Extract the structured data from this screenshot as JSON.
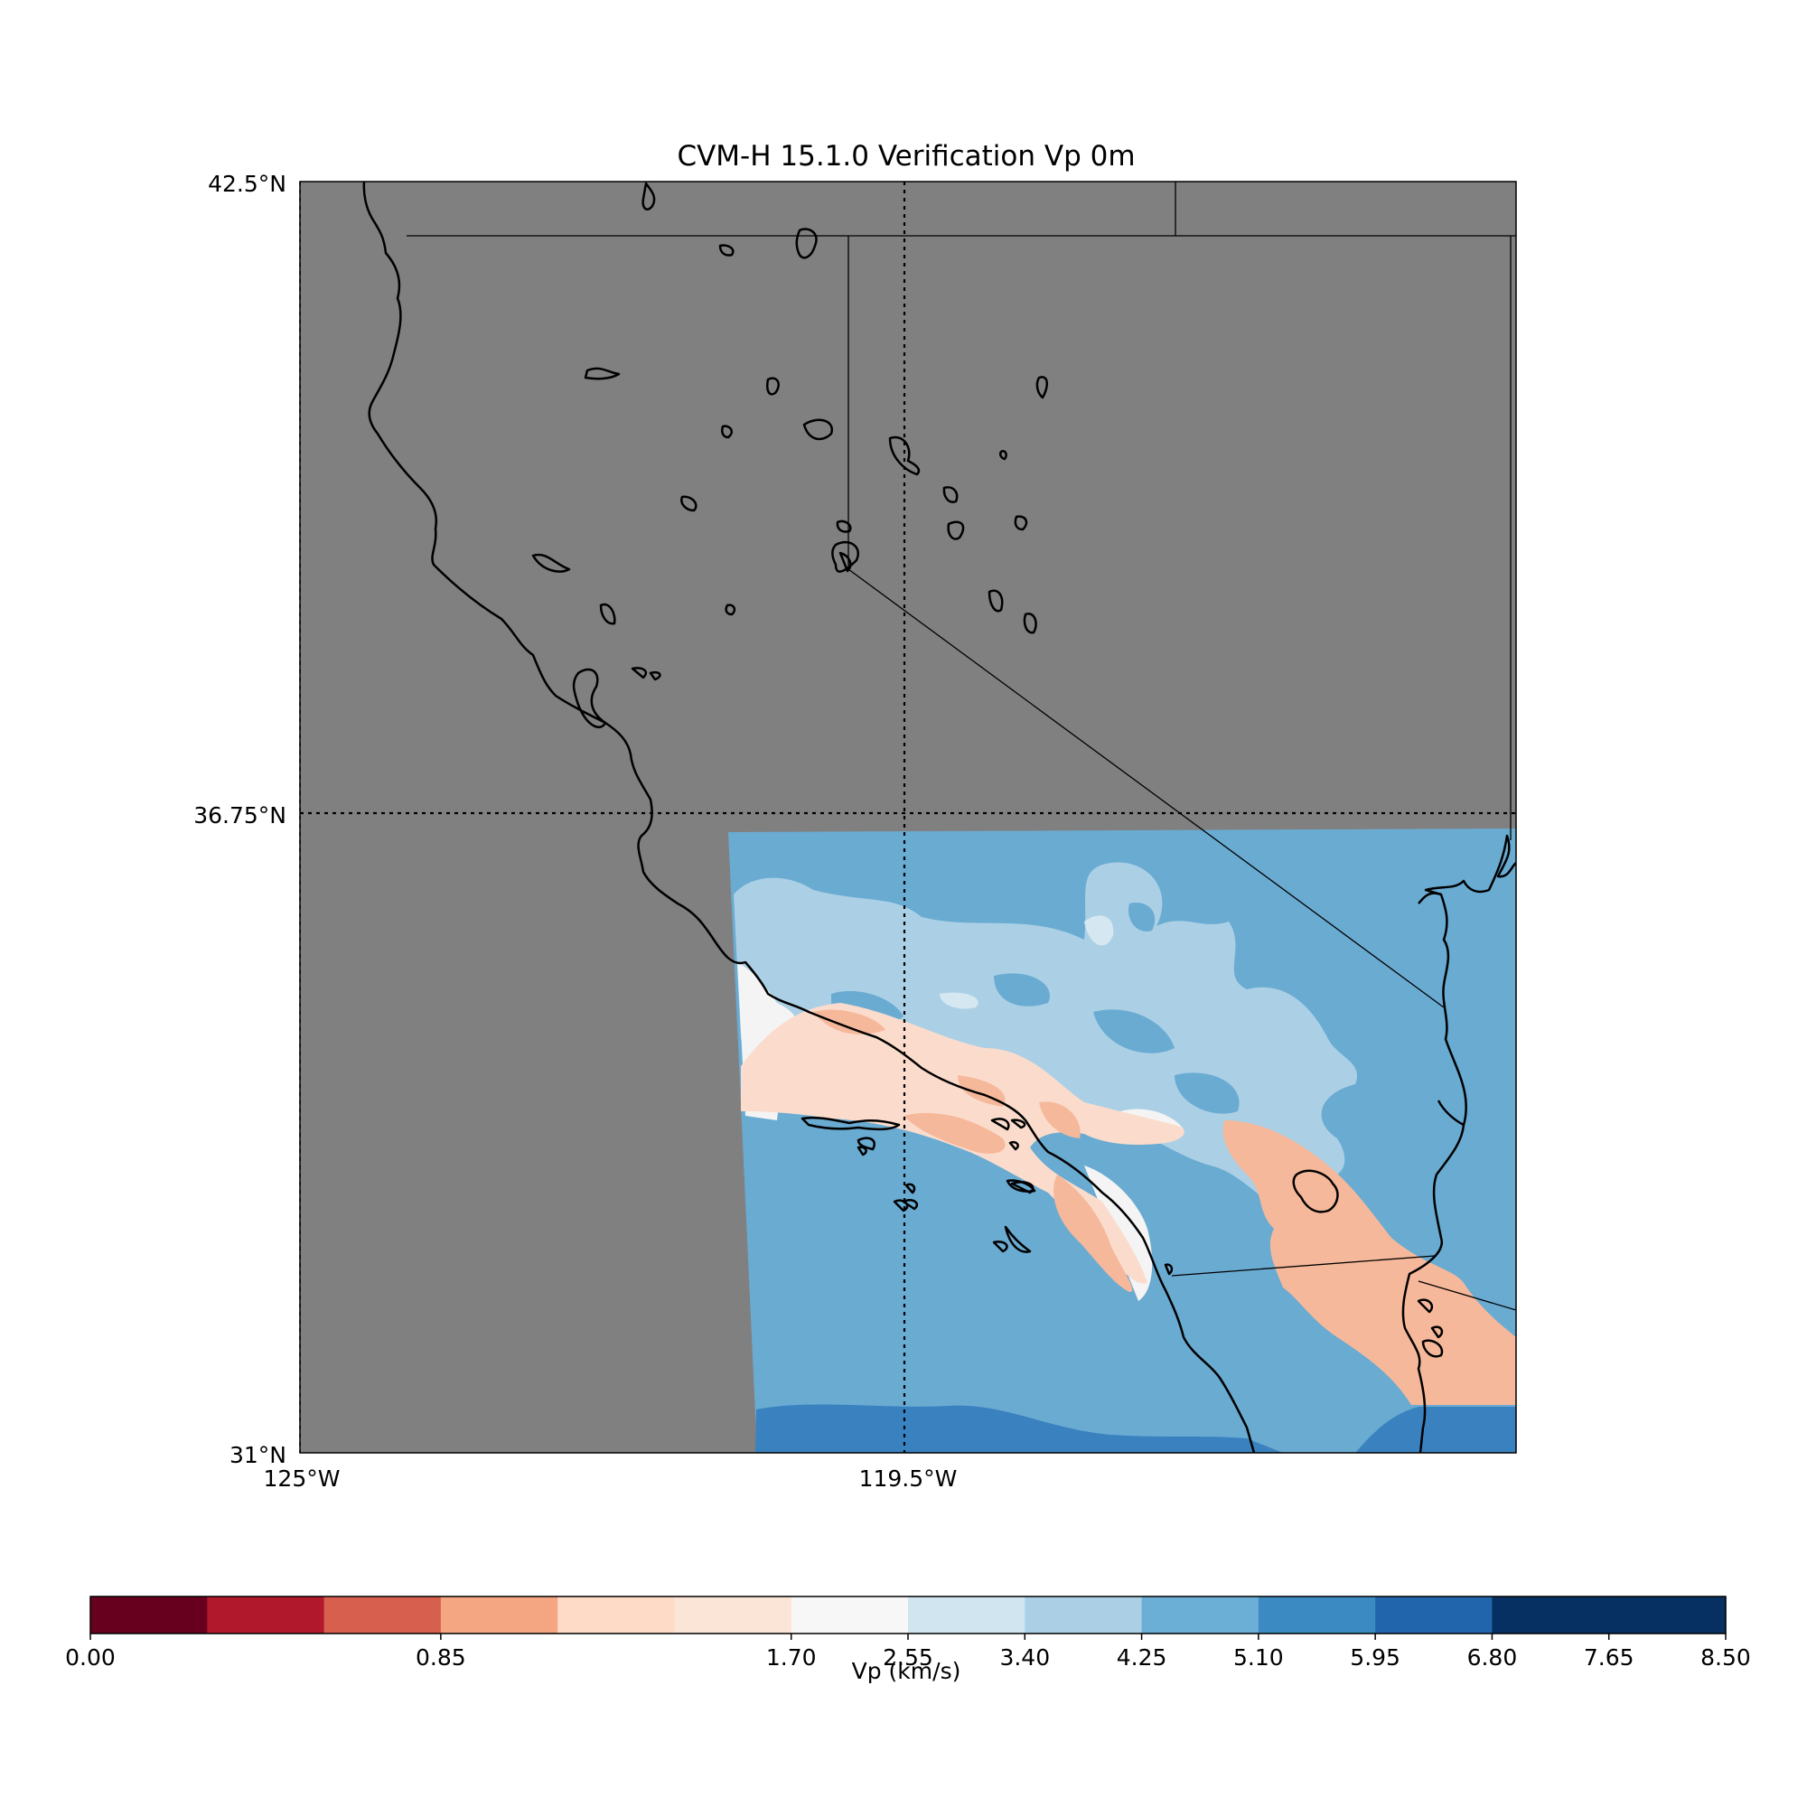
{
  "title": "CVM-H 15.1.0 Verification Vp 0m",
  "map": {
    "lat_range": [
      31,
      42.5
    ],
    "lon_range": [
      -125,
      -114
    ],
    "lat_tick_labels": [
      "42.5°N",
      "36.75°N",
      "31°N"
    ],
    "lon_tick_labels": [
      "125°W",
      "119.5°W"
    ],
    "no_data_color": "#808080",
    "gridlines": "dotted at 36.75°N and 119.5°W"
  },
  "colorbar": {
    "label": "Vp (km/s)",
    "boundaries": [
      0.0,
      0.283,
      0.567,
      0.85,
      1.133,
      1.417,
      1.7,
      2.55,
      3.4,
      4.25,
      5.1,
      5.95,
      6.8,
      7.65,
      8.5
    ],
    "tick_values": [
      0.0,
      0.85,
      1.7,
      2.55,
      3.4,
      4.25,
      5.1,
      5.95,
      6.8,
      7.65,
      8.5
    ],
    "tick_labels": [
      "0.00",
      "0.85",
      "1.70",
      "2.55",
      "3.40",
      "4.25",
      "5.10",
      "5.95",
      "6.80",
      "7.65",
      "8.50"
    ],
    "colors": [
      "#67001f",
      "#b2182b",
      "#d6604d",
      "#f4a582",
      "#fddbc7",
      "#fbe5d6",
      "#f7f7f7",
      "#d1e5f0",
      "#abd0e6",
      "#6baed6",
      "#3c8ac2",
      "#2166ac",
      "#053061",
      "#053061"
    ]
  },
  "legend_colors": {
    "sediment": "#f6b89a",
    "sediment_light": "#fbdccc",
    "basement": "#abd0e6",
    "crust": "#6aabd2",
    "deep": "#3a82bf"
  }
}
